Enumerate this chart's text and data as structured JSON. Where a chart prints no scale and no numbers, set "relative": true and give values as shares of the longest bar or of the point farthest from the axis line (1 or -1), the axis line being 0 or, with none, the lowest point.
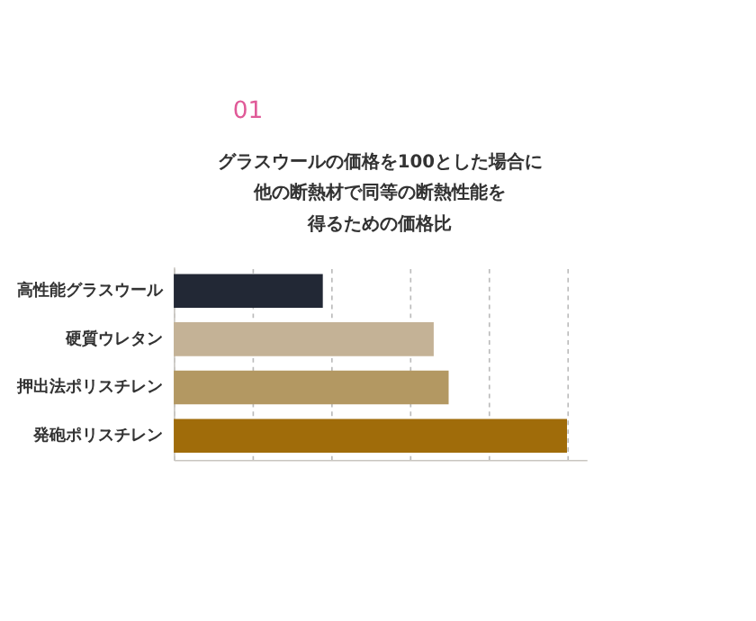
{
  "chart_data": {
    "type": "bar",
    "orientation": "horizontal",
    "relative": true,
    "title": "グラスウールの価格を100とした場合に他の断熱材で同等の断熱性能を得るための価格比",
    "annotations": [
      "01"
    ],
    "categories": [
      "高性能グラスウール",
      "硬質ウレタン",
      "押出法ポリスチレン",
      "発砲ポリスチレン"
    ],
    "values": [
      0.379,
      0.661,
      0.699,
      1
    ],
    "colors": [
      "#222835",
      "#c4b296",
      "#b39862",
      "#a06c0a"
    ],
    "grid": "x"
  }
}
